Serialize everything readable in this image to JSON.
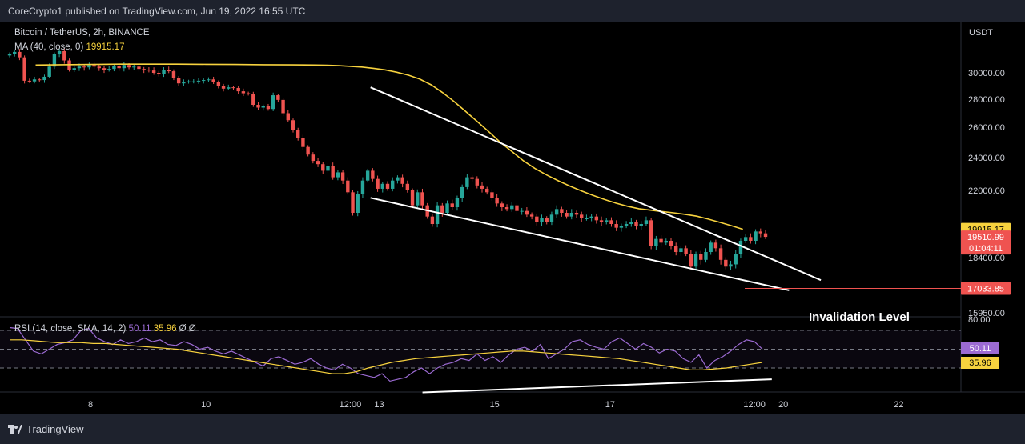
{
  "header": {
    "publisher": "CoreCrypto1 published on TradingView.com, Jun 19, 2022 16:55 UTC"
  },
  "legend": {
    "symbol": "Bitcoin / TetherUS, 2h, BINANCE",
    "ma_label": "MA (40, close, 0)",
    "ma_value": "19915.17",
    "rsi_label": "RSI (14, close, SMA, 14, 2)",
    "rsi_value": "50.11",
    "rsi_sma_value": "35.96",
    "rsi_extra": "Ø Ø"
  },
  "annotation": {
    "invalidation_label": "Invalidation Level"
  },
  "footer": {
    "brand": "TradingView"
  },
  "colors": {
    "up": "#26a69a",
    "down": "#ef5350",
    "ma": "#f7d23e",
    "rsi": "#9c6bd3",
    "trendline": "#ffffff",
    "invalidation": "#ef5350"
  },
  "chart_data": {
    "type": "candlestick",
    "symbol": "BTCUSDT",
    "timeframe": "2h",
    "exchange": "BINANCE",
    "currency": "USDT",
    "price_axis": {
      "ticks": [
        "30000.00",
        "28000.00",
        "26000.00",
        "24000.00",
        "22000.00",
        "18400.00",
        "15950.00"
      ],
      "tick_values": [
        30000,
        28000,
        26000,
        24000,
        22000,
        18400,
        15950
      ],
      "labels": [
        {
          "value": 19915.17,
          "text": "19915.17",
          "kind": "ma"
        },
        {
          "value": 19510.99,
          "text": "19510.99",
          "kind": "last",
          "countdown": "01:04:11"
        },
        {
          "value": 17033.85,
          "text": "17033.85",
          "kind": "invalidation"
        }
      ],
      "ylim": [
        15950,
        31500
      ]
    },
    "time_axis": {
      "labels": [
        "8",
        "10",
        "12:00",
        "13",
        "15",
        "17",
        "12:00",
        "20",
        "22"
      ],
      "label_days": [
        8,
        10,
        12.5,
        13,
        15,
        17,
        19.5,
        20,
        22
      ]
    },
    "candles_close": [
      31200,
      31350,
      31000,
      29400,
      29350,
      29500,
      29450,
      29700,
      30400,
      31200,
      31400,
      30800,
      30200,
      30300,
      30400,
      30350,
      30500,
      30400,
      30300,
      30200,
      30250,
      30450,
      30300,
      30500,
      30350,
      30400,
      30250,
      30200,
      30150,
      30000,
      29900,
      30200,
      30100,
      29600,
      29200,
      29300,
      29350,
      29350,
      29400,
      29450,
      29500,
      29300,
      29000,
      28800,
      28900,
      28850,
      28600,
      28450,
      28400,
      27600,
      27400,
      27500,
      27300,
      28300,
      27950,
      27000,
      26500,
      25800,
      25300,
      24700,
      24200,
      23800,
      23600,
      23200,
      23500,
      22800,
      23100,
      22600,
      21900,
      20800,
      21800,
      22600,
      23200,
      22700,
      22100,
      22400,
      22100,
      22600,
      22800,
      22400,
      22000,
      21200,
      21900,
      21200,
      20600,
      20200,
      21200,
      20800,
      21300,
      21100,
      21600,
      22200,
      22800,
      22700,
      22300,
      22100,
      21900,
      21600,
      21300,
      21100,
      21000,
      21200,
      20900,
      20900,
      20700,
      20600,
      20300,
      20500,
      20300,
      20700,
      21000,
      20800,
      20600,
      20800,
      20700,
      20500,
      20500,
      20600,
      20400,
      20300,
      20400,
      20200,
      20000,
      20100,
      20200,
      20300,
      20100,
      20200,
      20400,
      19000,
      19400,
      19200,
      19300,
      19000,
      18700,
      18900,
      18600,
      18000,
      18600,
      18300,
      18700,
      19200,
      18900,
      18300,
      18000,
      18100,
      18600,
      19300,
      19500,
      19300,
      19800,
      19700,
      19510.99
    ],
    "ma_40": {
      "name": "MA (40, close, 0)",
      "values": [
        30500,
        30520,
        30540,
        30560,
        30560,
        30560,
        30550,
        30540,
        30520,
        30510,
        30500,
        30490,
        30460,
        30420,
        30370,
        30290,
        30190,
        30040,
        29830,
        29530,
        29090,
        28500,
        27830,
        27120,
        26400,
        25700,
        25000,
        24400,
        23800,
        23330,
        22940,
        22590,
        22270,
        21980,
        21740,
        21520,
        21320,
        21150,
        21020,
        20940,
        20870,
        20800,
        20720,
        20620,
        20460,
        20290,
        20110,
        19915.17
      ],
      "x_days": [
        7.05,
        7.5,
        8,
        8.5,
        9,
        9.5,
        10,
        10.5,
        11,
        11.5,
        11.9,
        12.1,
        12.3,
        12.5,
        12.7,
        12.9,
        13.1,
        13.3,
        13.5,
        13.7,
        13.9,
        14.1,
        14.3,
        14.5,
        14.7,
        14.9,
        15.1,
        15.3,
        15.5,
        15.7,
        15.9,
        16.1,
        16.3,
        16.5,
        16.7,
        16.9,
        17.1,
        17.3,
        17.5,
        17.7,
        17.9,
        18.1,
        18.3,
        18.5,
        18.7,
        18.9,
        19.1,
        19.3
      ]
    },
    "trendlines": [
      {
        "name": "upper",
        "from": {
          "day": 12.85,
          "price": 28900
        },
        "to": {
          "day": 20.65,
          "price": 17400
        }
      },
      {
        "name": "lower",
        "from": {
          "day": 12.85,
          "price": 21600
        },
        "to": {
          "day": 20.1,
          "price": 16950
        }
      }
    ],
    "invalidation_level": 17033.85,
    "rsi": {
      "label": "RSI (14, close, SMA, 14, 2)",
      "ylim": [
        0,
        100
      ],
      "bands": [
        70,
        50,
        30
      ],
      "axis_tick": "80.00",
      "rsi_values": [
        73,
        72,
        60,
        48,
        45,
        50,
        55,
        57,
        60,
        70,
        72,
        62,
        58,
        55,
        60,
        56,
        58,
        62,
        58,
        60,
        55,
        54,
        58,
        55,
        50,
        52,
        48,
        45,
        48,
        44,
        40,
        36,
        32,
        40,
        42,
        38,
        34,
        36,
        40,
        34,
        30,
        28,
        34,
        30,
        24,
        22,
        20,
        24,
        16,
        18,
        20,
        26,
        30,
        24,
        30,
        34,
        36,
        40,
        38,
        45,
        38,
        42,
        36,
        44,
        50,
        52,
        48,
        55,
        40,
        45,
        50,
        58,
        60,
        55,
        52,
        50,
        58,
        62,
        56,
        50,
        56,
        52,
        46,
        50,
        48,
        40,
        36,
        44,
        30,
        38,
        42,
        48,
        55,
        60,
        58,
        50.11
      ],
      "sma_values": [
        60,
        60,
        59,
        58,
        57,
        57,
        57,
        56,
        56,
        55,
        54,
        53,
        52,
        51,
        50,
        48,
        46,
        44,
        42,
        40,
        38,
        36,
        34,
        32,
        30,
        28,
        26,
        24,
        24,
        26,
        30,
        33,
        36,
        38,
        40,
        41,
        42,
        43,
        44,
        45,
        46,
        47,
        48,
        48,
        47,
        46,
        45,
        44,
        43,
        42,
        41,
        40,
        38,
        36,
        34,
        32,
        30,
        28,
        28,
        29,
        30,
        32,
        34,
        35.96
      ],
      "divergence_line": {
        "from": {
          "day": 13.75,
          "value": 4
        },
        "to": {
          "day": 19.8,
          "value": 18
        }
      },
      "value_label": "50.11",
      "sma_label": "35.96"
    }
  }
}
